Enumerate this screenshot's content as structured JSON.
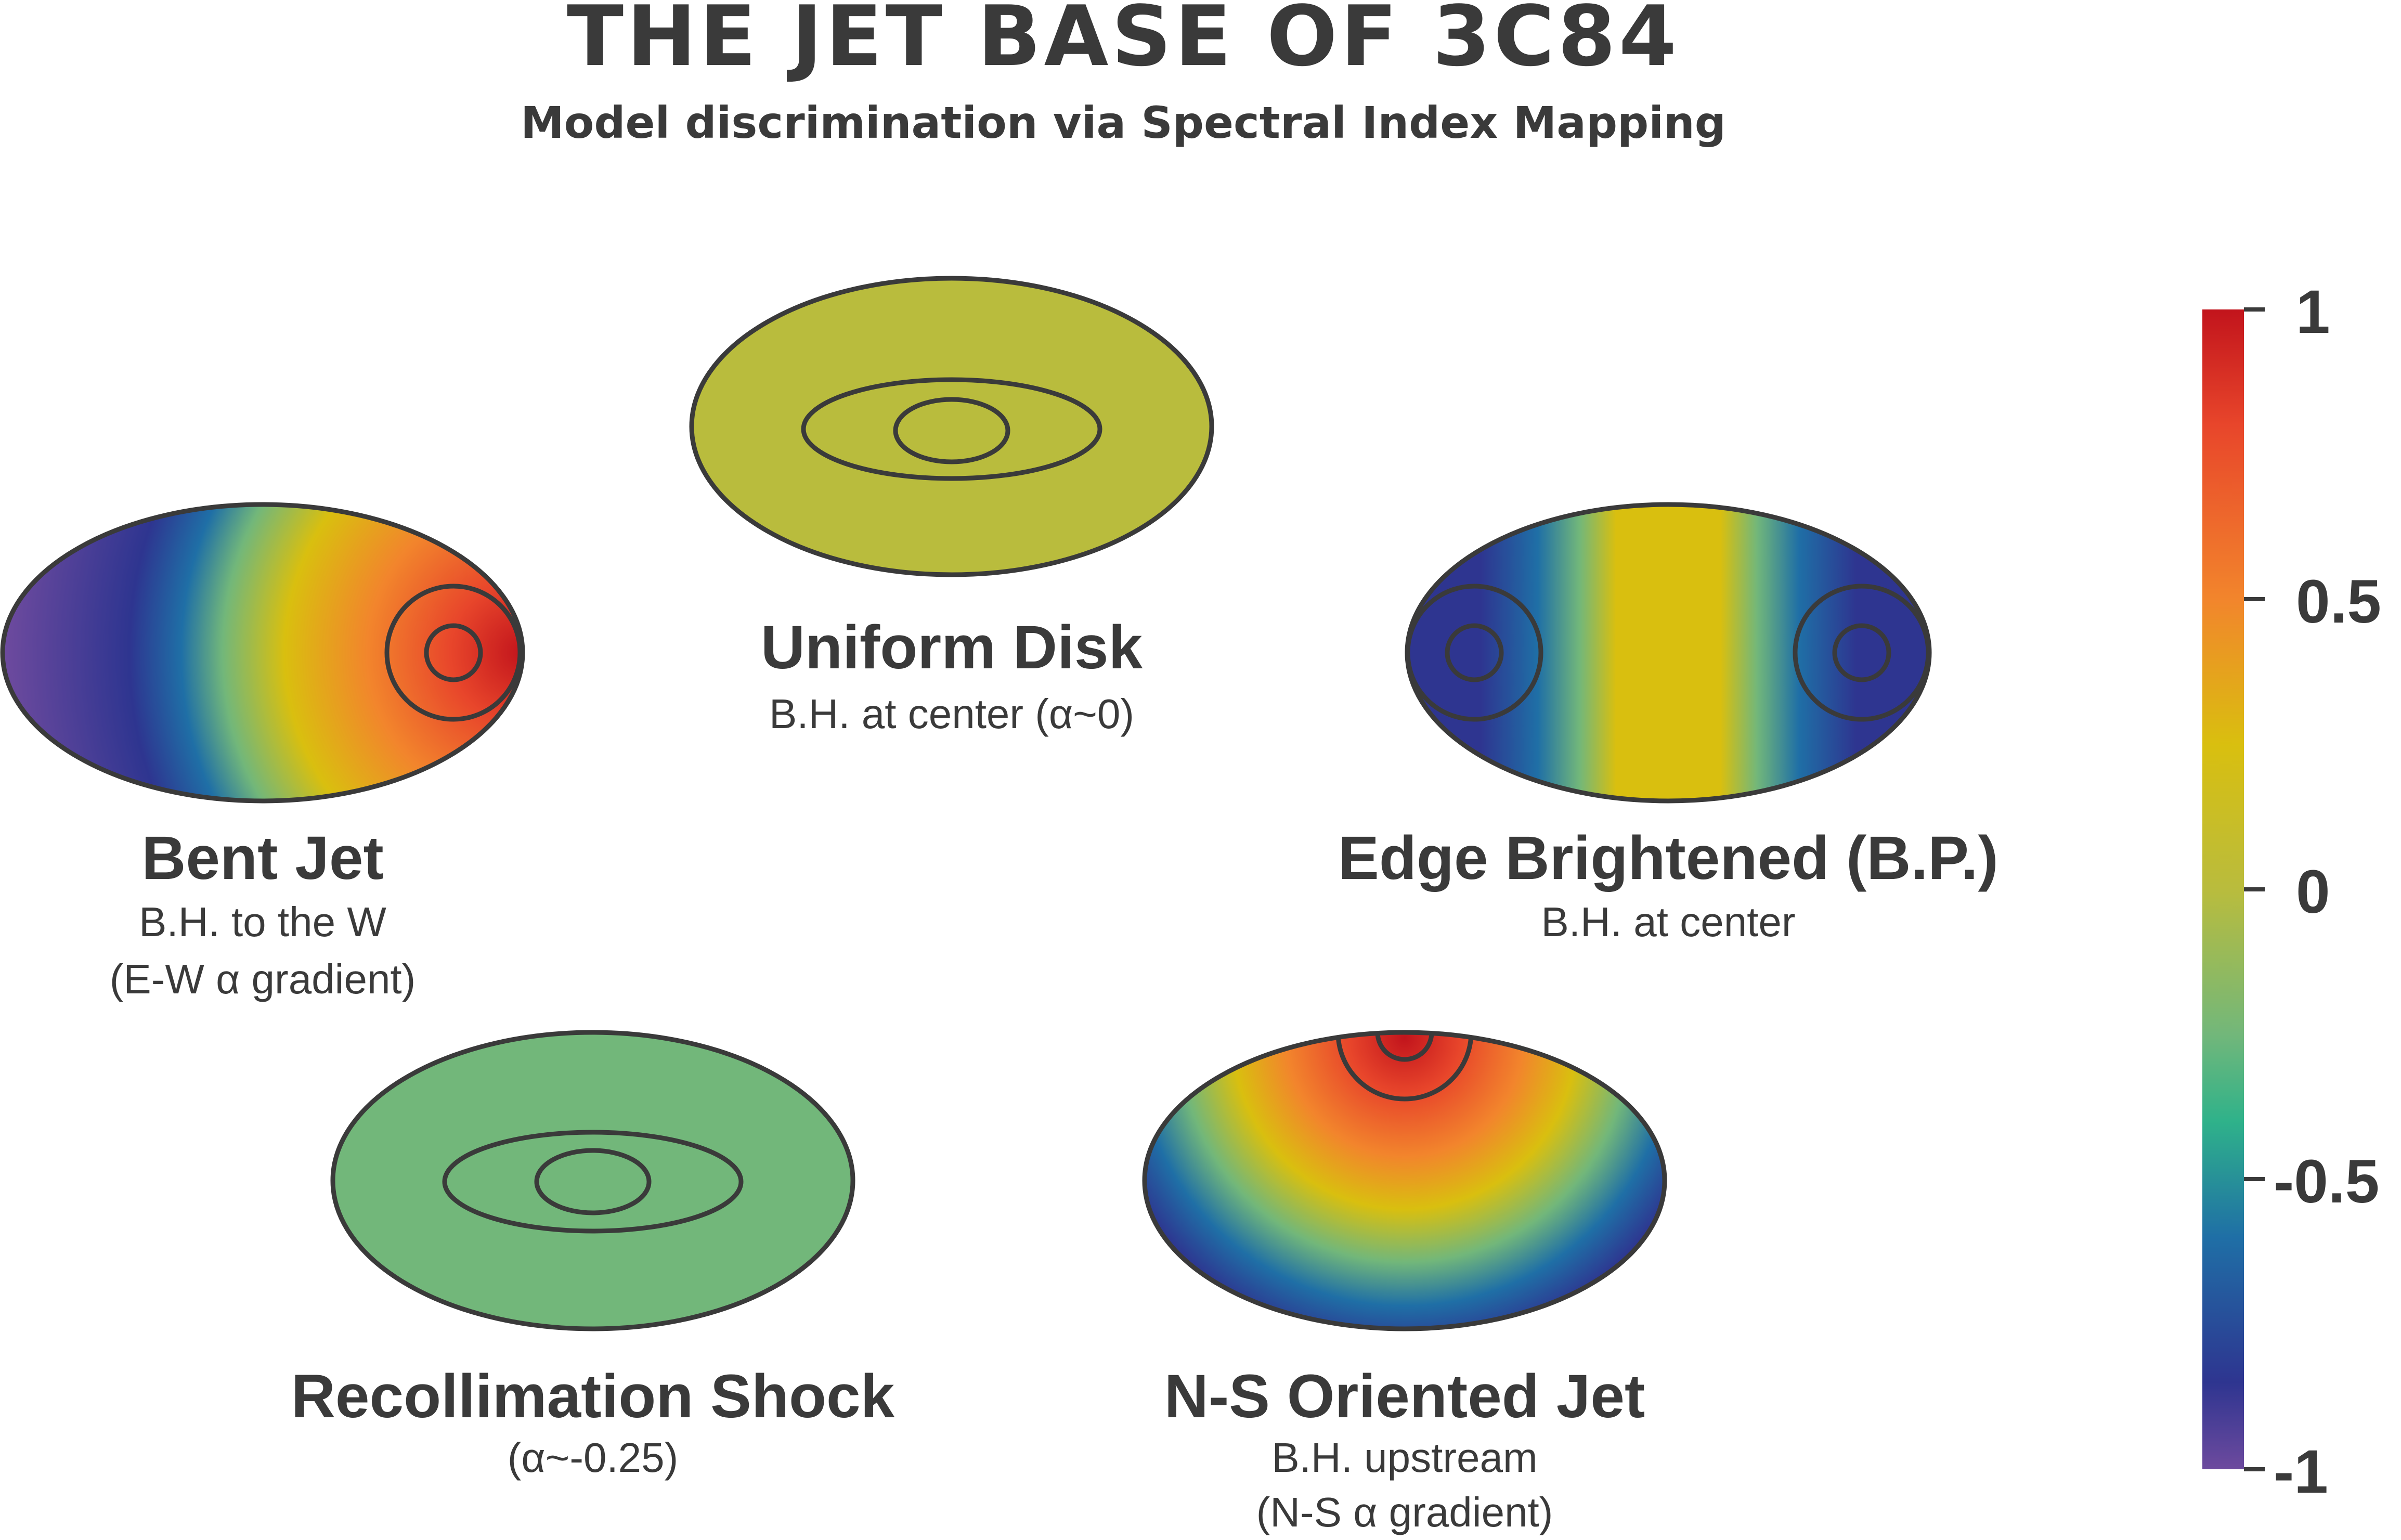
{
  "title": "THE JET BASE OF 3C84",
  "subtitle": "Model discrimination via Spectral Index Mapping",
  "models": [
    {
      "id": "uniform",
      "label": "Uniform Disk",
      "captions": [
        "B.H. at center (α~0)"
      ]
    },
    {
      "id": "bent",
      "label": "Bent Jet",
      "captions": [
        "B.H. to the W",
        "(E-W α gradient)"
      ]
    },
    {
      "id": "edge",
      "label": "Edge Brightened (B.P.)",
      "captions": [
        "B.H. at center"
      ]
    },
    {
      "id": "recoll",
      "label": "Recollimation Shock",
      "captions": [
        "(α~-0.25)"
      ]
    },
    {
      "id": "ns",
      "label": "N-S Oriented Jet",
      "captions": [
        "B.H. upstream",
        "(N-S α gradient)"
      ]
    }
  ],
  "colorbar": {
    "ticks": [
      "1",
      "0.5",
      "0",
      "-0.5",
      "-1"
    ],
    "range": [
      -1,
      1
    ],
    "colors": {
      "v_m1": "#6d4a9e",
      "v_m085": "#2e3590",
      "v_m06": "#1f6fa6",
      "v_m04": "#2fb28a",
      "v_m025": "#72b77a",
      "v_0": "#b9bc3d",
      "v_025": "#d9bf0f",
      "v_05": "#f2852c",
      "v_08": "#e8462b",
      "v_1": "#c2141c"
    }
  }
}
